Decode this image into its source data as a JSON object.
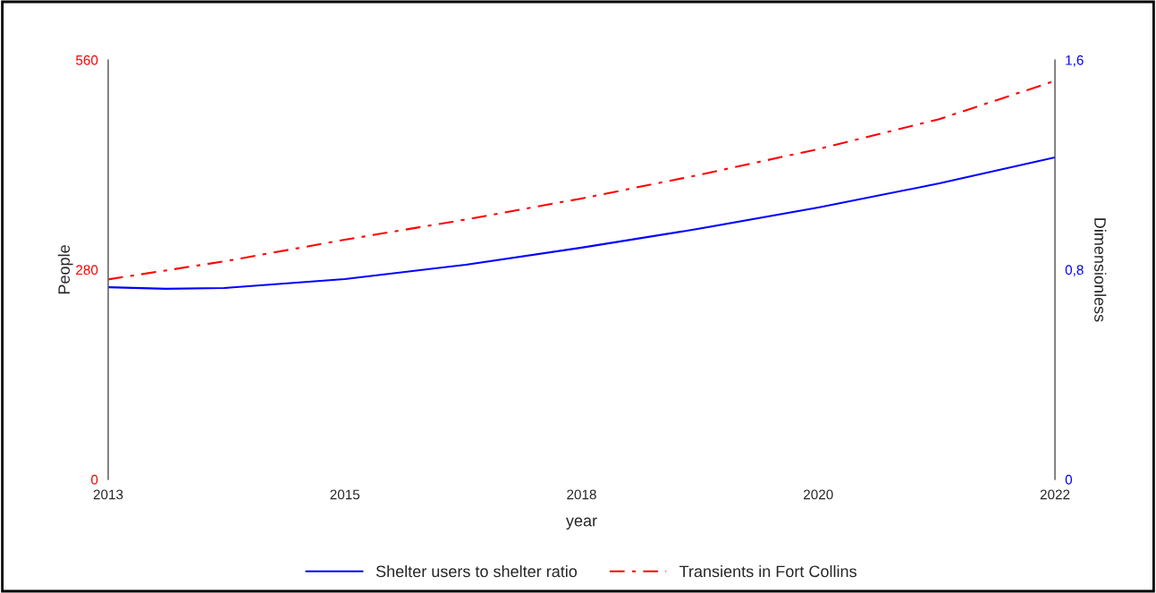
{
  "chart_data": {
    "type": "line",
    "xlabel": "year",
    "ylabel": "People",
    "y2label": "Dimensionless",
    "xlim": [
      2013,
      2022
    ],
    "xticks": [
      2013,
      {
        "value": 2015.25,
        "label": "2015"
      },
      {
        "value": 2017.5,
        "label": "2018"
      },
      {
        "value": 2019.75,
        "label": "2020"
      },
      2022
    ],
    "ylim": [
      0,
      560
    ],
    "yticks": [
      0,
      280,
      560
    ],
    "y2lim": [
      0,
      1.6
    ],
    "y2ticks": [
      0,
      {
        "value": 0.8,
        "label": "0,8"
      },
      {
        "value": 1.6,
        "label": "1,6"
      }
    ],
    "grid": false,
    "legend": "bottom",
    "series": [
      {
        "name": "Shelter users to shelter ratio",
        "color": "#0000ff",
        "axis": "y2",
        "line_style": "solid",
        "x": [
          2013,
          2013.55,
          2014.1,
          2015.25,
          2016.4,
          2017.5,
          2018.6,
          2019.75,
          2020.9,
          2022
        ],
        "values": [
          0.733,
          0.727,
          0.73,
          0.764,
          0.819,
          0.884,
          0.955,
          1.037,
          1.129,
          1.228
        ]
      },
      {
        "name": "Transients in Fort Collins",
        "color": "#ff0000",
        "axis": "y",
        "line_style": "dashdot",
        "x": [
          2013,
          2014.1,
          2015.25,
          2016.4,
          2017.5,
          2018.6,
          2019.75,
          2020.9,
          2022
        ],
        "values": [
          267,
          291,
          320,
          347,
          375,
          406,
          441,
          481,
          532
        ]
      }
    ]
  }
}
